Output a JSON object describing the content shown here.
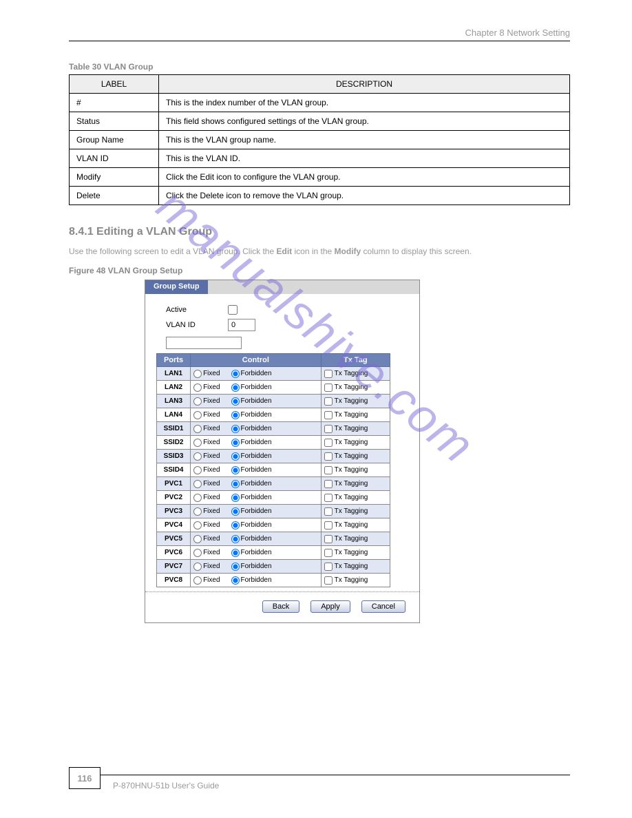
{
  "header": {
    "chapter_title": "Chapter 8 Network Setting"
  },
  "table_caption": "Table 30   VLAN Group",
  "desc_table": {
    "columns": [
      "LABEL",
      "DESCRIPTION"
    ],
    "rows": [
      [
        "#",
        "This is the index number of the VLAN group."
      ],
      [
        "Status",
        "This field shows configured settings of the VLAN group."
      ],
      [
        "Group Name",
        "This is the VLAN group name."
      ],
      [
        "VLAN ID",
        "This is the VLAN ID."
      ],
      [
        "Modify",
        "Click the Edit icon to configure the VLAN group."
      ],
      [
        "Delete",
        "Click the Delete icon to remove the VLAN group."
      ]
    ]
  },
  "section_heading": "8.4.1  Editing a VLAN Group",
  "body_text_parts": [
    "Use the following screen to edit a VLAN group. Click the ",
    "Edit",
    " icon in the ",
    "Modify",
    " column to display this screen."
  ],
  "figure_caption": "Figure 48   VLAN Group Setup",
  "screenshot": {
    "tab_label": "Group Setup",
    "active_label": "Active",
    "vlan_id_label": "VLAN ID",
    "vlan_id_value": "0",
    "name_value": "",
    "columns": {
      "ports": "Ports",
      "control": "Control",
      "txtag": "Tx Tag"
    },
    "control_options": {
      "fixed": "Fixed",
      "forbidden": "Forbidden"
    },
    "txtag_label": "Tx Tagging",
    "ports": [
      "LAN1",
      "LAN2",
      "LAN3",
      "LAN4",
      "SSID1",
      "SSID2",
      "SSID3",
      "SSID4",
      "PVC1",
      "PVC2",
      "PVC3",
      "PVC4",
      "PVC5",
      "PVC6",
      "PVC7",
      "PVC8"
    ],
    "buttons": {
      "back": "Back",
      "apply": "Apply",
      "cancel": "Cancel"
    }
  },
  "watermark": "manualshive.com",
  "footer": {
    "page": "116",
    "doc_title": "P-870HNU-51b User's Guide"
  }
}
